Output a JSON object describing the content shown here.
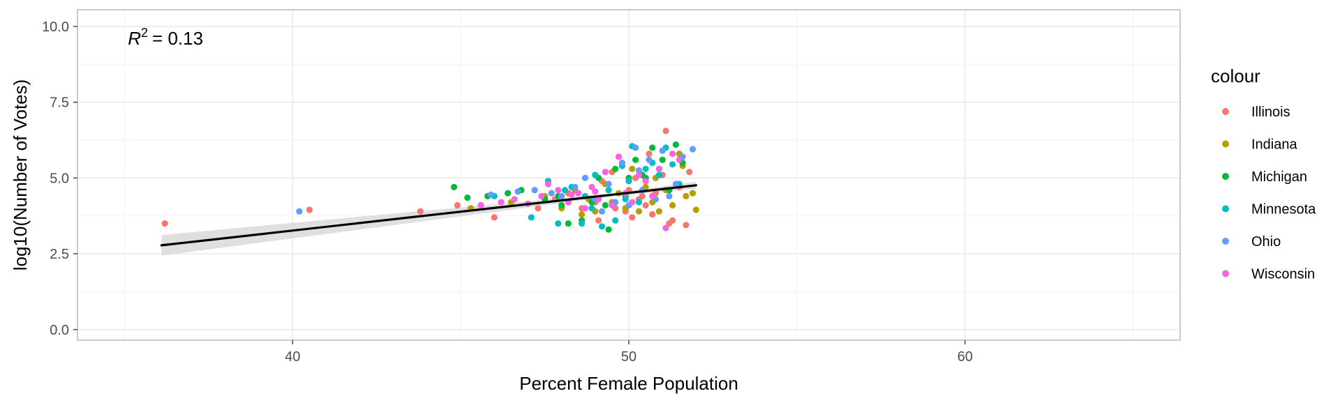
{
  "chart_data": {
    "type": "scatter",
    "xlabel": "Percent Female Population",
    "ylabel": "log10(Number of Votes)",
    "xlim": [
      33.6,
      66.4
    ],
    "ylim": [
      -0.35,
      10.55
    ],
    "x_ticks": [
      40,
      50,
      60
    ],
    "x_tick_labels": [
      "40",
      "50",
      "60"
    ],
    "x_minor_ticks": [
      35,
      45,
      55,
      65
    ],
    "y_ticks": [
      0,
      2.5,
      5,
      7.5,
      10
    ],
    "y_tick_labels": [
      "0.0",
      "2.5",
      "5.0",
      "7.5",
      "10.0"
    ],
    "y_minor_ticks": [
      1.25,
      3.75,
      6.25,
      8.75
    ],
    "grid": true,
    "legend": {
      "title": "colour",
      "placement": "right"
    },
    "annotation": {
      "r2_symbol": "R",
      "r2_exponent": "2",
      "r2_text": "= 0.13",
      "x": 35.1,
      "y": 9.4
    },
    "fit": {
      "x": [
        36.1,
        52.0
      ],
      "y": [
        2.78,
        4.76
      ],
      "ci_upper": [
        3.12,
        4.88
      ],
      "ci_lower": [
        2.44,
        4.64
      ],
      "ci_mid_x": 49.5,
      "ci_mid_upper": 4.49,
      "ci_mid_lower": 4.39,
      "line_color": "#000000",
      "ribbon_color": "#d9d9d9"
    },
    "series": [
      {
        "name": "Illinois",
        "color": "#F8766D",
        "x": [
          36.2,
          40.5,
          43.8,
          44.9,
          46.0,
          47.3,
          47.8,
          48.2,
          48.6,
          49.0,
          49.1,
          49.3,
          49.5,
          49.6,
          49.8,
          49.9,
          50.0,
          50.1,
          50.2,
          50.3,
          50.5,
          50.6,
          50.7,
          50.8,
          51.0,
          51.1,
          51.2,
          51.3,
          51.5,
          51.7,
          51.8,
          49.7,
          50.4,
          49.2
        ],
        "y": [
          3.5,
          3.95,
          3.9,
          4.1,
          3.7,
          4.0,
          4.3,
          4.5,
          4.0,
          4.2,
          3.6,
          4.8,
          5.2,
          4.0,
          5.5,
          3.9,
          4.6,
          3.7,
          5.0,
          4.3,
          4.1,
          5.8,
          3.8,
          4.5,
          5.1,
          6.55,
          3.5,
          3.6,
          4.7,
          3.45,
          5.2,
          5.7,
          4.4,
          4.9
        ]
      },
      {
        "name": "Indiana",
        "color": "#B79F00",
        "x": [
          45.3,
          45.6,
          46.5,
          47.5,
          48.0,
          48.4,
          48.8,
          49.0,
          49.3,
          49.5,
          49.7,
          49.9,
          50.1,
          50.3,
          50.5,
          50.7,
          50.9,
          51.1,
          51.3,
          51.5,
          51.7,
          51.9,
          52.0,
          51.6,
          50.8,
          48.6
        ],
        "y": [
          4.0,
          4.1,
          4.2,
          4.4,
          4.0,
          4.6,
          4.3,
          3.9,
          4.8,
          4.2,
          4.5,
          4.0,
          5.3,
          3.9,
          4.7,
          4.2,
          3.9,
          4.6,
          4.1,
          5.8,
          4.4,
          4.5,
          3.95,
          5.4,
          5.0,
          3.8
        ]
      },
      {
        "name": "Michigan",
        "color": "#00BA38",
        "x": [
          44.8,
          45.2,
          45.8,
          46.4,
          46.8,
          47.5,
          48.0,
          48.2,
          48.6,
          48.9,
          49.1,
          49.4,
          49.6,
          49.9,
          50.0,
          50.2,
          50.4,
          50.5,
          50.7,
          50.9,
          51.0,
          51.2,
          51.4,
          51.6,
          49.3,
          47.9
        ],
        "y": [
          4.7,
          4.35,
          4.4,
          4.5,
          4.6,
          4.3,
          4.1,
          3.5,
          3.6,
          4.2,
          5.0,
          3.3,
          5.3,
          4.4,
          5.0,
          5.6,
          5.1,
          5.0,
          6.0,
          5.3,
          5.6,
          4.6,
          6.1,
          5.5,
          4.1,
          4.4
        ]
      },
      {
        "name": "Minnesota",
        "color": "#00BFC4",
        "x": [
          46.0,
          47.1,
          47.6,
          47.9,
          48.1,
          48.3,
          48.6,
          48.9,
          49.0,
          49.2,
          49.4,
          49.6,
          49.8,
          50.0,
          50.1,
          50.3,
          50.5,
          50.7,
          50.9,
          51.1,
          51.3,
          51.5,
          48.7,
          49.9
        ],
        "y": [
          4.4,
          3.7,
          4.9,
          3.5,
          4.6,
          4.7,
          3.5,
          4.0,
          5.1,
          3.4,
          4.6,
          3.6,
          5.4,
          4.9,
          6.05,
          4.2,
          5.3,
          5.5,
          5.1,
          6.0,
          5.45,
          4.8,
          4.4,
          4.3
        ]
      },
      {
        "name": "Ohio",
        "color": "#619CFF",
        "x": [
          40.2,
          45.9,
          46.7,
          47.2,
          47.7,
          48.0,
          48.4,
          48.7,
          49.0,
          49.2,
          49.4,
          49.6,
          49.8,
          50.0,
          50.2,
          50.4,
          50.6,
          50.8,
          51.0,
          51.2,
          51.4,
          51.6,
          51.9,
          50.3
        ],
        "y": [
          3.9,
          4.45,
          4.55,
          4.6,
          4.5,
          4.4,
          4.7,
          5.0,
          4.3,
          3.9,
          4.8,
          4.2,
          5.5,
          4.1,
          6.0,
          4.6,
          5.6,
          4.3,
          5.9,
          4.4,
          4.8,
          5.7,
          5.95,
          5.25
        ]
      },
      {
        "name": "Wisconsin",
        "color": "#F564E3",
        "x": [
          45.6,
          46.2,
          46.6,
          47.0,
          47.4,
          47.6,
          47.9,
          48.2,
          48.5,
          48.7,
          48.9,
          49.1,
          49.3,
          49.5,
          49.7,
          49.9,
          50.1,
          50.3,
          50.5,
          50.7,
          50.9,
          51.1,
          51.3,
          51.5,
          48.3,
          49.0
        ],
        "y": [
          4.1,
          4.2,
          4.3,
          4.15,
          4.4,
          4.8,
          4.6,
          4.2,
          4.5,
          4.0,
          4.7,
          4.3,
          5.2,
          4.1,
          5.7,
          4.5,
          4.2,
          5.1,
          4.9,
          4.4,
          5.3,
          3.35,
          5.8,
          5.6,
          4.45,
          4.55
        ]
      }
    ]
  }
}
